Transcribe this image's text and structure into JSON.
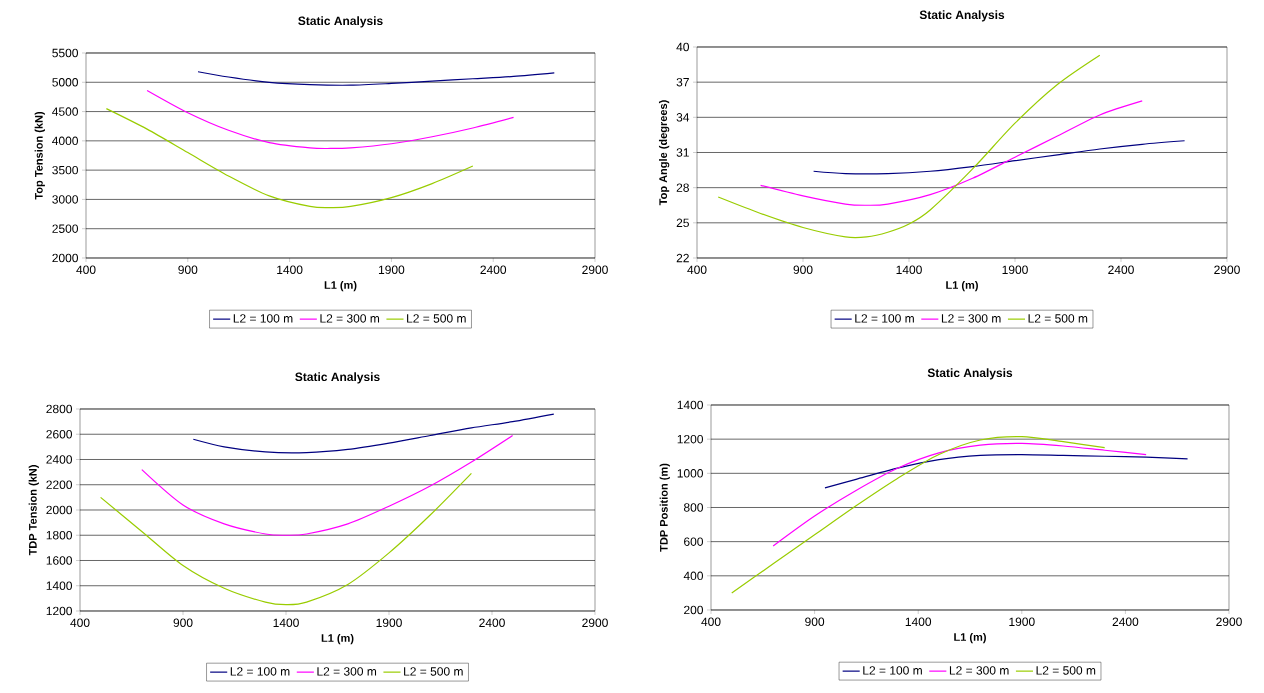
{
  "chart_data": [
    {
      "type": "line",
      "title": "Static Analysis",
      "xlabel": "L1 (m)",
      "ylabel": "Top Tension (kN)",
      "xlim": [
        400,
        2900
      ],
      "xticks": [
        400,
        900,
        1400,
        1900,
        2400,
        2900
      ],
      "ylim": [
        2000,
        5500
      ],
      "yticks": [
        2000,
        2500,
        3000,
        3500,
        4000,
        4500,
        5000,
        5500
      ],
      "grid": "y",
      "legend": "bottom",
      "marker": "none",
      "line_style": "solid",
      "series": [
        {
          "name": "L2 = 100 m",
          "color": "#000080",
          "x": [
            950,
            1100,
            1300,
            1500,
            1700,
            1900,
            2100,
            2300,
            2500,
            2700
          ],
          "values": [
            5180,
            5090,
            5000,
            4960,
            4950,
            4980,
            5020,
            5060,
            5100,
            5160
          ]
        },
        {
          "name": "L2 = 300 m",
          "color": "#ff00ff",
          "x": [
            700,
            900,
            1100,
            1300,
            1500,
            1600,
            1700,
            1900,
            2100,
            2300,
            2500
          ],
          "values": [
            4860,
            4480,
            4180,
            3970,
            3880,
            3870,
            3880,
            3950,
            4070,
            4220,
            4400
          ]
        },
        {
          "name": "L2 = 500 m",
          "color": "#99cc00",
          "x": [
            500,
            700,
            900,
            1100,
            1300,
            1500,
            1600,
            1700,
            1900,
            2100,
            2300
          ],
          "values": [
            4550,
            4200,
            3800,
            3400,
            3060,
            2880,
            2860,
            2880,
            3030,
            3270,
            3570
          ]
        }
      ]
    },
    {
      "type": "line",
      "title": "Static Analysis",
      "xlabel": "L1 (m)",
      "ylabel": "Top Angle (degrees)",
      "xlim": [
        400,
        2900
      ],
      "xticks": [
        400,
        900,
        1400,
        1900,
        2400,
        2900
      ],
      "ylim": [
        22,
        40
      ],
      "yticks": [
        22,
        25,
        28,
        31,
        34,
        37,
        40
      ],
      "grid": "y",
      "legend": "bottom",
      "marker": "none",
      "line_style": "solid",
      "series": [
        {
          "name": "L2 = 100 m",
          "color": "#000080",
          "x": [
            950,
            1100,
            1300,
            1500,
            1700,
            1900,
            2100,
            2300,
            2500,
            2700
          ],
          "values": [
            29.4,
            29.2,
            29.2,
            29.4,
            29.8,
            30.3,
            30.8,
            31.3,
            31.7,
            32.0
          ]
        },
        {
          "name": "L2 = 300 m",
          "color": "#ff00ff",
          "x": [
            700,
            900,
            1100,
            1200,
            1300,
            1500,
            1700,
            1900,
            2100,
            2300,
            2500
          ],
          "values": [
            28.2,
            27.3,
            26.6,
            26.5,
            26.6,
            27.4,
            28.8,
            30.6,
            32.4,
            34.2,
            35.4
          ]
        },
        {
          "name": "L2 = 500 m",
          "color": "#99cc00",
          "x": [
            500,
            700,
            900,
            1100,
            1200,
            1300,
            1400,
            1500,
            1700,
            1900,
            2100,
            2300
          ],
          "values": [
            27.2,
            25.8,
            24.6,
            23.8,
            23.8,
            24.2,
            24.9,
            26.1,
            29.6,
            33.5,
            36.8,
            39.3
          ]
        }
      ]
    },
    {
      "type": "line",
      "title": "Static Analysis",
      "xlabel": "L1 (m)",
      "ylabel": "TDP Tension (kN)",
      "xlim": [
        400,
        2900
      ],
      "xticks": [
        400,
        900,
        1400,
        1900,
        2400,
        2900
      ],
      "ylim": [
        1200,
        2800
      ],
      "yticks": [
        1200,
        1400,
        1600,
        1800,
        2000,
        2200,
        2400,
        2600,
        2800
      ],
      "grid": "y",
      "legend": "bottom",
      "marker": "none",
      "line_style": "solid",
      "series": [
        {
          "name": "L2 = 100 m",
          "color": "#000080",
          "x": [
            950,
            1100,
            1300,
            1500,
            1700,
            1900,
            2100,
            2300,
            2500,
            2700
          ],
          "values": [
            2560,
            2500,
            2460,
            2455,
            2480,
            2530,
            2590,
            2650,
            2700,
            2760
          ]
        },
        {
          "name": "L2 = 300 m",
          "color": "#ff00ff",
          "x": [
            700,
            900,
            1100,
            1300,
            1400,
            1500,
            1700,
            1900,
            2100,
            2300,
            2500
          ],
          "values": [
            2320,
            2040,
            1890,
            1810,
            1800,
            1810,
            1890,
            2030,
            2190,
            2380,
            2590
          ]
        },
        {
          "name": "L2 = 500 m",
          "color": "#99cc00",
          "x": [
            500,
            700,
            900,
            1100,
            1300,
            1400,
            1500,
            1700,
            1900,
            2100,
            2300
          ],
          "values": [
            2100,
            1830,
            1560,
            1380,
            1270,
            1250,
            1270,
            1410,
            1660,
            1960,
            2290
          ]
        }
      ]
    },
    {
      "type": "line",
      "title": "Static Analysis",
      "xlabel": "L1 (m)",
      "ylabel": "TDP Position (m)",
      "xlim": [
        400,
        2900
      ],
      "xticks": [
        400,
        900,
        1400,
        1900,
        2400,
        2900
      ],
      "ylim": [
        200,
        1400
      ],
      "yticks": [
        200,
        400,
        600,
        800,
        1000,
        1200,
        1400
      ],
      "grid": "y",
      "legend": "bottom",
      "marker": "none",
      "line_style": "solid",
      "series": [
        {
          "name": "L2 = 100 m",
          "color": "#000080",
          "x": [
            950,
            1100,
            1300,
            1500,
            1700,
            1900,
            2100,
            2300,
            2500,
            2700
          ],
          "values": [
            915,
            965,
            1030,
            1080,
            1105,
            1110,
            1105,
            1100,
            1095,
            1085
          ]
        },
        {
          "name": "L2 = 300 m",
          "color": "#ff00ff",
          "x": [
            700,
            900,
            1100,
            1300,
            1500,
            1700,
            1900,
            2100,
            2300,
            2500
          ],
          "values": [
            575,
            750,
            900,
            1030,
            1120,
            1165,
            1175,
            1160,
            1135,
            1110
          ]
        },
        {
          "name": "L2 = 500 m",
          "color": "#99cc00",
          "x": [
            500,
            700,
            900,
            1100,
            1300,
            1500,
            1700,
            1900,
            2100,
            2300
          ],
          "values": [
            300,
            470,
            640,
            810,
            970,
            1110,
            1195,
            1215,
            1185,
            1150
          ]
        }
      ]
    }
  ]
}
